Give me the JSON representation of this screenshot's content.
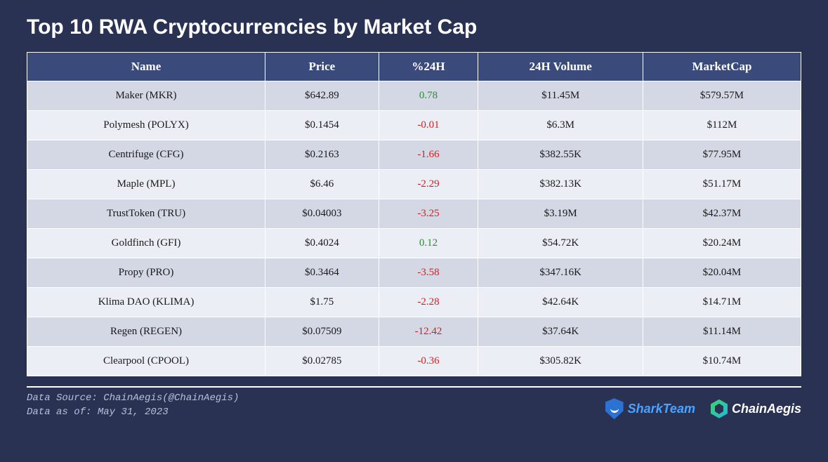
{
  "title": "Top 10 RWA Cryptocurrencies by Market Cap",
  "table": {
    "type": "table",
    "background_color": "#2a3254",
    "header_bg": "#3a4a7a",
    "header_text_color": "#ffffff",
    "row_even_bg": "#d4d7e4",
    "row_odd_bg": "#eceef5",
    "cell_text_color": "#1a1a1a",
    "positive_color": "#2e8b2e",
    "negative_color": "#d62020",
    "border_color": "#ffffff",
    "header_fontsize": 17,
    "cell_fontsize": 15,
    "columns": [
      "Name",
      "Price",
      "%24H",
      "24H Volume",
      "MarketCap"
    ],
    "rows": [
      {
        "name": "Maker (MKR)",
        "price": "$642.89",
        "pct24h": "0.78",
        "pct_sign": 1,
        "volume": "$11.45M",
        "mcap": "$579.57M"
      },
      {
        "name": "Polymesh (POLYX)",
        "price": "$0.1454",
        "pct24h": "-0.01",
        "pct_sign": -1,
        "volume": "$6.3M",
        "mcap": "$112M"
      },
      {
        "name": "Centrifuge (CFG)",
        "price": "$0.2163",
        "pct24h": "-1.66",
        "pct_sign": -1,
        "volume": "$382.55K",
        "mcap": "$77.95M"
      },
      {
        "name": "Maple (MPL)",
        "price": "$6.46",
        "pct24h": "-2.29",
        "pct_sign": -1,
        "volume": "$382.13K",
        "mcap": "$51.17M"
      },
      {
        "name": "TrustToken (TRU)",
        "price": "$0.04003",
        "pct24h": "-3.25",
        "pct_sign": -1,
        "volume": "$3.19M",
        "mcap": "$42.37M"
      },
      {
        "name": "Goldfinch (GFI)",
        "price": "$0.4024",
        "pct24h": "0.12",
        "pct_sign": 1,
        "volume": "$54.72K",
        "mcap": "$20.24M"
      },
      {
        "name": "Propy (PRO)",
        "price": "$0.3464",
        "pct24h": "-3.58",
        "pct_sign": -1,
        "volume": "$347.16K",
        "mcap": "$20.04M"
      },
      {
        "name": "Klima DAO (KLIMA)",
        "price": "$1.75",
        "pct24h": "-2.28",
        "pct_sign": -1,
        "volume": "$42.64K",
        "mcap": "$14.71M"
      },
      {
        "name": "Regen (REGEN)",
        "price": "$0.07509",
        "pct24h": "-12.42",
        "pct_sign": -1,
        "volume": "$37.64K",
        "mcap": "$11.14M"
      },
      {
        "name": "Clearpool (CPOOL)",
        "price": "$0.02785",
        "pct24h": "-0.36",
        "pct_sign": -1,
        "volume": "$305.82K",
        "mcap": "$10.74M"
      }
    ]
  },
  "footer": {
    "source_line": "Data Source: ChainAegis(@ChainAegis)",
    "date_line": "Data as of: May 31, 2023",
    "brand1": "SharkTeam",
    "brand2": "ChainAegis"
  },
  "colors": {
    "page_bg": "#2a3254",
    "title_color": "#ffffff",
    "footer_text_color": "#b8c0da",
    "brand1_color": "#4aa3ff",
    "brand2_color": "#ffffff"
  }
}
